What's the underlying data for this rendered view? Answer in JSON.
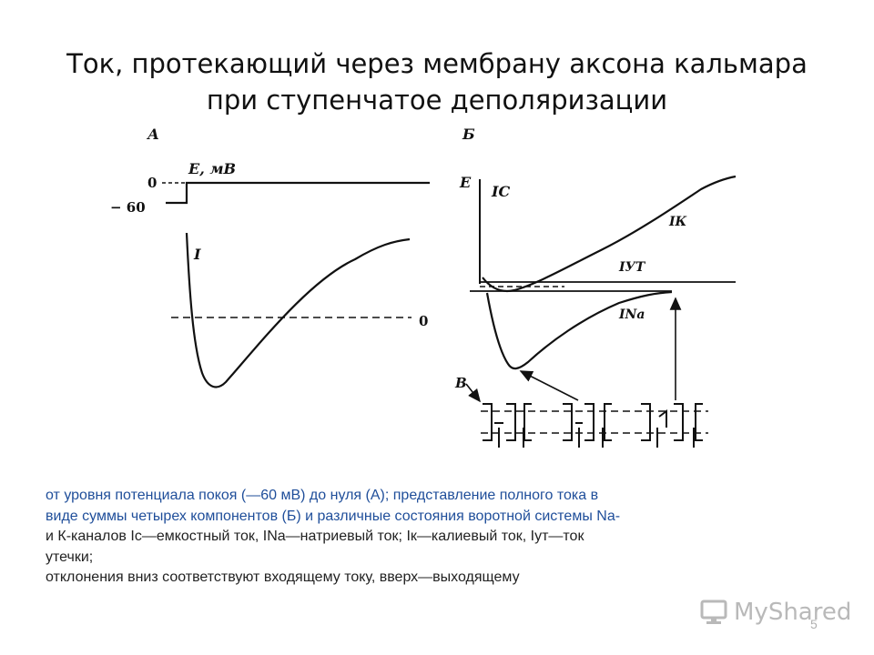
{
  "slide": {
    "title_line1": "Ток, протекающий через мембрану аксона кальмара",
    "title_line2": "при ступенчатое деполяризации",
    "page_number": "5"
  },
  "figure": {
    "panel_a": {
      "label": "А",
      "voltage_label": "E, мВ",
      "tick_zero": "0",
      "tick_minus60": "− 60",
      "current_label": "I",
      "baseline_zero": "0"
    },
    "panel_b": {
      "label": "Б",
      "voltage_label": "E",
      "ic_label": "IС",
      "ik_label": "IК",
      "iut_label": "IУТ",
      "ina_label": "INa"
    },
    "panel_v": {
      "label": "В"
    }
  },
  "caption": {
    "line1": "от уровня потенциала покоя (—60 мВ) до нуля (А); представление полного тока в",
    "line2": "виде суммы четырех компонентов (Б) и различные состояния воротной системы Na-",
    "line3": "и К-каналов Ic—емкостный ток, INa—натриевый ток; Iк—калиевый ток, Iут—ток",
    "line4": "утечки;",
    "line5": "отклонения вниз соответствуют входящему току, вверх—выходящему"
  },
  "watermark": {
    "text": "MyShared",
    "icon": "monitor-icon"
  }
}
